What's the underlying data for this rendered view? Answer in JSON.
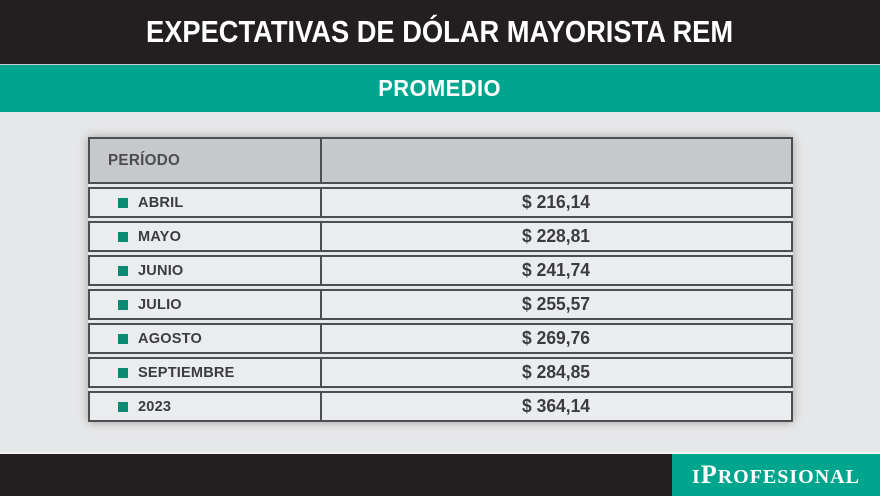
{
  "header": {
    "title": "EXPECTATIVAS DE DÓLAR MAYORISTA REM",
    "subtitle": "PROMEDIO"
  },
  "table": {
    "period_header": "PERÍODO",
    "rows": [
      {
        "label": "ABRIL",
        "value": "$ 216,14"
      },
      {
        "label": "MAYO",
        "value": "$ 228,81"
      },
      {
        "label": "JUNIO",
        "value": "$ 241,74"
      },
      {
        "label": "JULIO",
        "value": "$ 255,57"
      },
      {
        "label": "AGOSTO",
        "value": "$ 269,76"
      },
      {
        "label": "SEPTIEMBRE",
        "value": "$ 284,85"
      },
      {
        "label": "2023",
        "value": "$ 364,14"
      }
    ]
  },
  "footer": {
    "brand": "IPROFESIONAL",
    "brand_initial": "I",
    "brand_cap": "P",
    "brand_rest": "ROFESIONAL"
  },
  "colors": {
    "accent": "#00a58e",
    "accent_dark": "#0b8a73",
    "black": "#231f20",
    "page_bg": "#e6e7e8",
    "row_bg": "#ebecee",
    "header_row_bg": "#c7c8ca",
    "border": "#4d4e50",
    "text": "#3b3c3e"
  },
  "chart_data": {
    "type": "table",
    "title": "EXPECTATIVAS DE DÓLAR MAYORISTA REM",
    "subtitle": "PROMEDIO",
    "columns": [
      "PERÍODO",
      "PROMEDIO"
    ],
    "rows": [
      [
        "ABRIL",
        216.14
      ],
      [
        "MAYO",
        228.81
      ],
      [
        "JUNIO",
        241.74
      ],
      [
        "JULIO",
        255.57
      ],
      [
        "AGOSTO",
        269.76
      ],
      [
        "SEPTIEMBRE",
        284.85
      ],
      [
        "2023",
        364.14
      ]
    ],
    "value_format": "$ #.##0,00 (ARS, comma decimal)",
    "source_brand": "IPROFESIONAL"
  }
}
